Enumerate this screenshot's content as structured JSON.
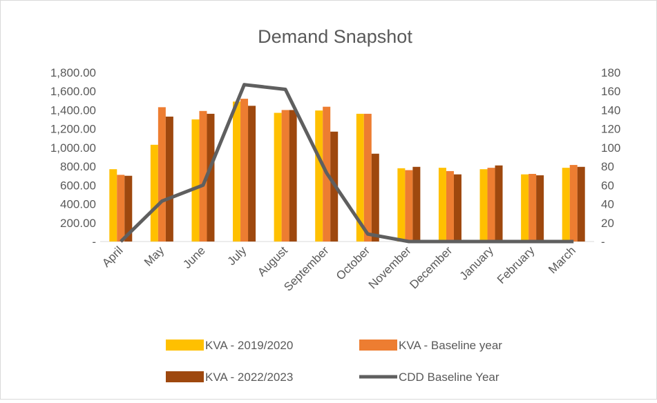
{
  "chart_data": {
    "type": "bar-line",
    "title": "Demand Snapshot",
    "categories": [
      "April",
      "May",
      "June",
      "July",
      "August",
      "September",
      "October",
      "November",
      "December",
      "January",
      "February",
      "March"
    ],
    "series": [
      {
        "name": "KVA - 2019/2020",
        "color": "#FFC000",
        "type": "bar",
        "values": [
          770,
          1030,
          1300,
          1490,
          1370,
          1395,
          1360,
          780,
          785,
          770,
          715,
          785
        ]
      },
      {
        "name": "KVA - Baseline year",
        "color": "#ED7D31",
        "type": "bar",
        "values": [
          710,
          1430,
          1390,
          1520,
          1400,
          1435,
          1360,
          760,
          750,
          785,
          720,
          815
        ]
      },
      {
        "name": "KVA - 2022/2023",
        "color": "#9E480E",
        "type": "bar",
        "values": [
          700,
          1330,
          1360,
          1445,
          1400,
          1170,
          935,
          795,
          715,
          810,
          705,
          795
        ]
      },
      {
        "name": "CDD Baseline Year",
        "color": "#5F5F5F",
        "type": "line",
        "axis": "y2",
        "values": [
          0,
          43,
          60,
          167,
          162,
          73,
          8,
          0,
          0,
          0,
          0,
          0
        ]
      }
    ],
    "ylim": [
      0,
      1800
    ],
    "yticks": [
      {
        "value": 0,
        "label": "-"
      },
      {
        "value": 200,
        "label": "200.00"
      },
      {
        "value": 400,
        "label": "400.00"
      },
      {
        "value": 600,
        "label": "600.00"
      },
      {
        "value": 800,
        "label": "800.00"
      },
      {
        "value": 1000,
        "label": "1,000.00"
      },
      {
        "value": 1200,
        "label": "1,200.00"
      },
      {
        "value": 1400,
        "label": "1,400.00"
      },
      {
        "value": 1600,
        "label": "1,600.00"
      },
      {
        "value": 1800,
        "label": "1,800.00"
      }
    ],
    "y2lim": [
      0,
      180
    ],
    "y2ticks": [
      {
        "value": 0,
        "label": "-"
      },
      20,
      40,
      60,
      80,
      100,
      120,
      140,
      160,
      180
    ],
    "legend": "bottom"
  }
}
